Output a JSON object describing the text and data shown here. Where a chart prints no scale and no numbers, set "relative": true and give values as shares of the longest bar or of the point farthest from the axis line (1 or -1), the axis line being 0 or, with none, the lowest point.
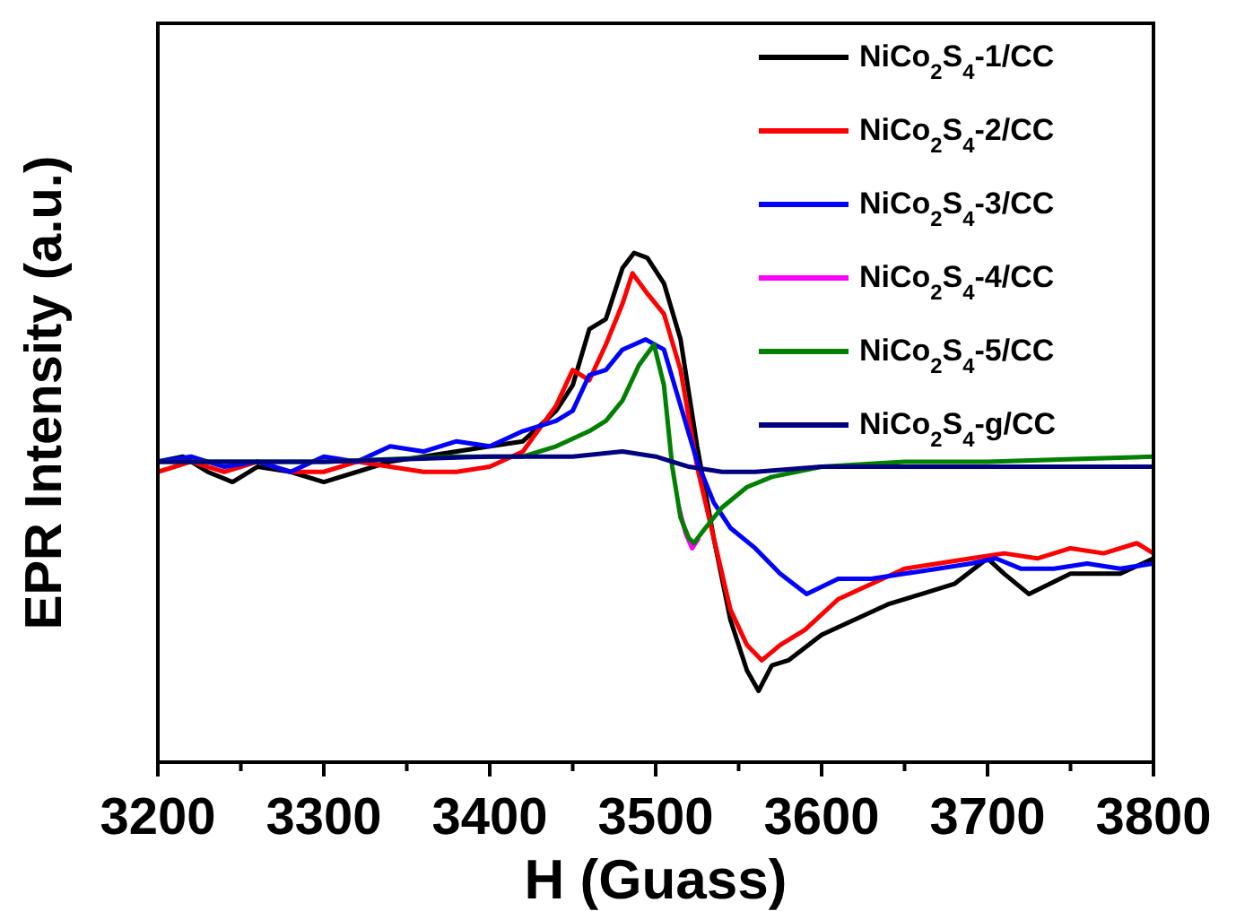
{
  "chart_data": {
    "type": "line",
    "relative": true,
    "xlabel": "H (Guass)",
    "ylabel": "EPR Intensity (a.u.)",
    "xlim": [
      3200,
      3800
    ],
    "xticks": [
      3200,
      3300,
      3400,
      3500,
      3600,
      3700,
      3800
    ],
    "legend": "top right",
    "line_style": "solid",
    "grid": false,
    "series": [
      {
        "name": "NiCo$_{2}$S$_{4}$-1/CC",
        "color": "#000000",
        "x": [
          3200,
          3215,
          3230,
          3245,
          3260,
          3280,
          3300,
          3320,
          3340,
          3360,
          3380,
          3400,
          3420,
          3440,
          3450,
          3460,
          3470,
          3480,
          3487,
          3495,
          3505,
          3515,
          3525,
          3535,
          3545,
          3555,
          3562,
          3570,
          3580,
          3600,
          3620,
          3640,
          3660,
          3680,
          3700,
          3710,
          3725,
          3750,
          3780,
          3800
        ],
        "values": [
          0.59,
          0.6,
          0.57,
          0.55,
          0.58,
          0.57,
          0.55,
          0.57,
          0.59,
          0.6,
          0.61,
          0.62,
          0.63,
          0.69,
          0.74,
          0.85,
          0.87,
          0.97,
          1,
          0.99,
          0.94,
          0.83,
          0.62,
          0.44,
          0.28,
          0.18,
          0.14,
          0.19,
          0.2,
          0.25,
          0.28,
          0.31,
          0.33,
          0.35,
          0.4,
          0.37,
          0.33,
          0.37,
          0.37,
          0.4
        ]
      },
      {
        "name": "NiCo$_{2}$S$_{4}$-2/CC",
        "color": "#ff0000",
        "x": [
          3200,
          3220,
          3240,
          3260,
          3280,
          3300,
          3320,
          3340,
          3360,
          3380,
          3400,
          3420,
          3440,
          3450,
          3460,
          3470,
          3480,
          3486,
          3495,
          3505,
          3515,
          3525,
          3535,
          3545,
          3555,
          3564,
          3575,
          3590,
          3610,
          3630,
          3650,
          3670,
          3690,
          3710,
          3730,
          3750,
          3770,
          3790,
          3800
        ],
        "values": [
          0.57,
          0.59,
          0.57,
          0.59,
          0.57,
          0.57,
          0.59,
          0.58,
          0.57,
          0.57,
          0.58,
          0.61,
          0.7,
          0.77,
          0.75,
          0.82,
          0.9,
          0.96,
          0.92,
          0.88,
          0.77,
          0.58,
          0.44,
          0.3,
          0.23,
          0.2,
          0.23,
          0.26,
          0.32,
          0.35,
          0.38,
          0.39,
          0.4,
          0.41,
          0.4,
          0.42,
          0.41,
          0.43,
          0.41
        ]
      },
      {
        "name": "NiCo$_{2}$S$_{4}$-3/CC",
        "color": "#0000ff",
        "x": [
          3200,
          3220,
          3240,
          3260,
          3280,
          3300,
          3320,
          3340,
          3360,
          3380,
          3400,
          3420,
          3440,
          3450,
          3460,
          3470,
          3480,
          3494,
          3505,
          3515,
          3525,
          3535,
          3545,
          3560,
          3575,
          3591,
          3610,
          3630,
          3650,
          3670,
          3690,
          3705,
          3720,
          3740,
          3760,
          3780,
          3800
        ],
        "values": [
          0.59,
          0.6,
          0.58,
          0.59,
          0.57,
          0.6,
          0.59,
          0.62,
          0.61,
          0.63,
          0.62,
          0.65,
          0.67,
          0.69,
          0.76,
          0.77,
          0.81,
          0.83,
          0.81,
          0.7,
          0.59,
          0.51,
          0.46,
          0.42,
          0.37,
          0.33,
          0.36,
          0.36,
          0.37,
          0.38,
          0.39,
          0.4,
          0.38,
          0.38,
          0.39,
          0.38,
          0.39
        ]
      },
      {
        "name": "NiCo$_{2}$S$_{4}$-4/CC",
        "color": "#ff00ff",
        "x": [
          3514,
          3518,
          3522,
          3526
        ],
        "values": [
          0.5,
          0.45,
          0.42,
          0.44
        ]
      },
      {
        "name": "NiCo$_{2}$S$_{4}$-5/CC",
        "color": "#008000",
        "x": [
          3200,
          3300,
          3380,
          3420,
          3440,
          3460,
          3470,
          3480,
          3490,
          3499,
          3505,
          3510,
          3515,
          3520,
          3523,
          3530,
          3540,
          3555,
          3570,
          3600,
          3650,
          3700,
          3800
        ],
        "values": [
          0.59,
          0.59,
          0.6,
          0.6,
          0.62,
          0.65,
          0.67,
          0.71,
          0.78,
          0.82,
          0.74,
          0.58,
          0.48,
          0.44,
          0.43,
          0.46,
          0.5,
          0.54,
          0.56,
          0.58,
          0.59,
          0.59,
          0.6
        ]
      },
      {
        "name": "NiCo$_{2}$S$_{4}$-g/CC",
        "color": "#000080",
        "x": [
          3200,
          3300,
          3400,
          3450,
          3480,
          3500,
          3520,
          3540,
          3560,
          3600,
          3700,
          3800
        ],
        "values": [
          0.59,
          0.59,
          0.6,
          0.6,
          0.61,
          0.6,
          0.58,
          0.57,
          0.57,
          0.58,
          0.58,
          0.58
        ]
      }
    ]
  }
}
